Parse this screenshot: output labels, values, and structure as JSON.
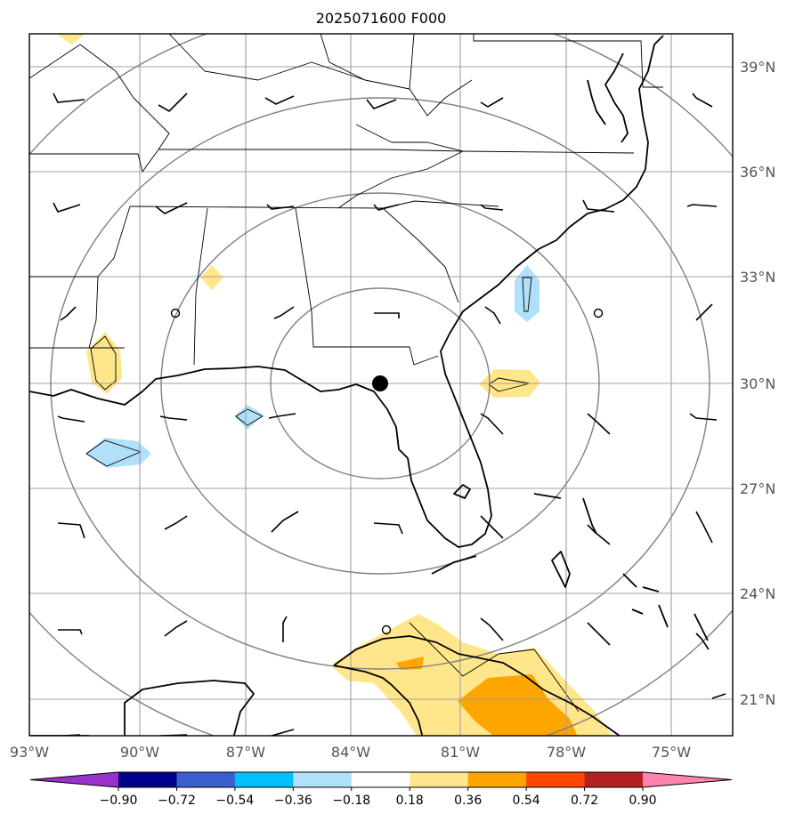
{
  "title": "2025071600 F000",
  "map": {
    "lon_range": [
      -93,
      -73
    ],
    "lat_range": [
      20,
      40
    ],
    "lon_ticks": [
      "93°W",
      "90°W",
      "87°W",
      "84°W",
      "81°W",
      "78°W",
      "75°W"
    ],
    "lat_ticks": [
      "39°N",
      "36°N",
      "33°N",
      "30°N",
      "27°N",
      "24°N",
      "21°N"
    ],
    "center_marker": {
      "lon": -83.0,
      "lat": 30.0
    },
    "range_rings": "concentric circles around center",
    "grid": true
  },
  "colorbar": {
    "orientation": "horizontal",
    "extend": "both",
    "levels": [
      -0.9,
      -0.72,
      -0.54,
      -0.36,
      -0.18,
      0.18,
      0.36,
      0.54,
      0.72,
      0.9
    ],
    "labels": [
      "−0.90",
      "−0.72",
      "−0.54",
      "−0.36",
      "−0.18",
      "0.18",
      "0.36",
      "0.54",
      "0.72",
      "0.90"
    ],
    "colors": [
      "#9932cc",
      "#00008b",
      "#3a5fcd",
      "#00bfff",
      "#b0e0fa",
      "#ffffff",
      "#ffe68a",
      "#ffa500",
      "#ff4500",
      "#b22222",
      "#ff85b0"
    ]
  },
  "colors": {
    "coast": "#000000",
    "grid": "#a0a0a0",
    "rings": "#808080",
    "light_blue": "#b0e0fa",
    "light_yellow": "#ffe68a",
    "orange": "#ffa500"
  }
}
